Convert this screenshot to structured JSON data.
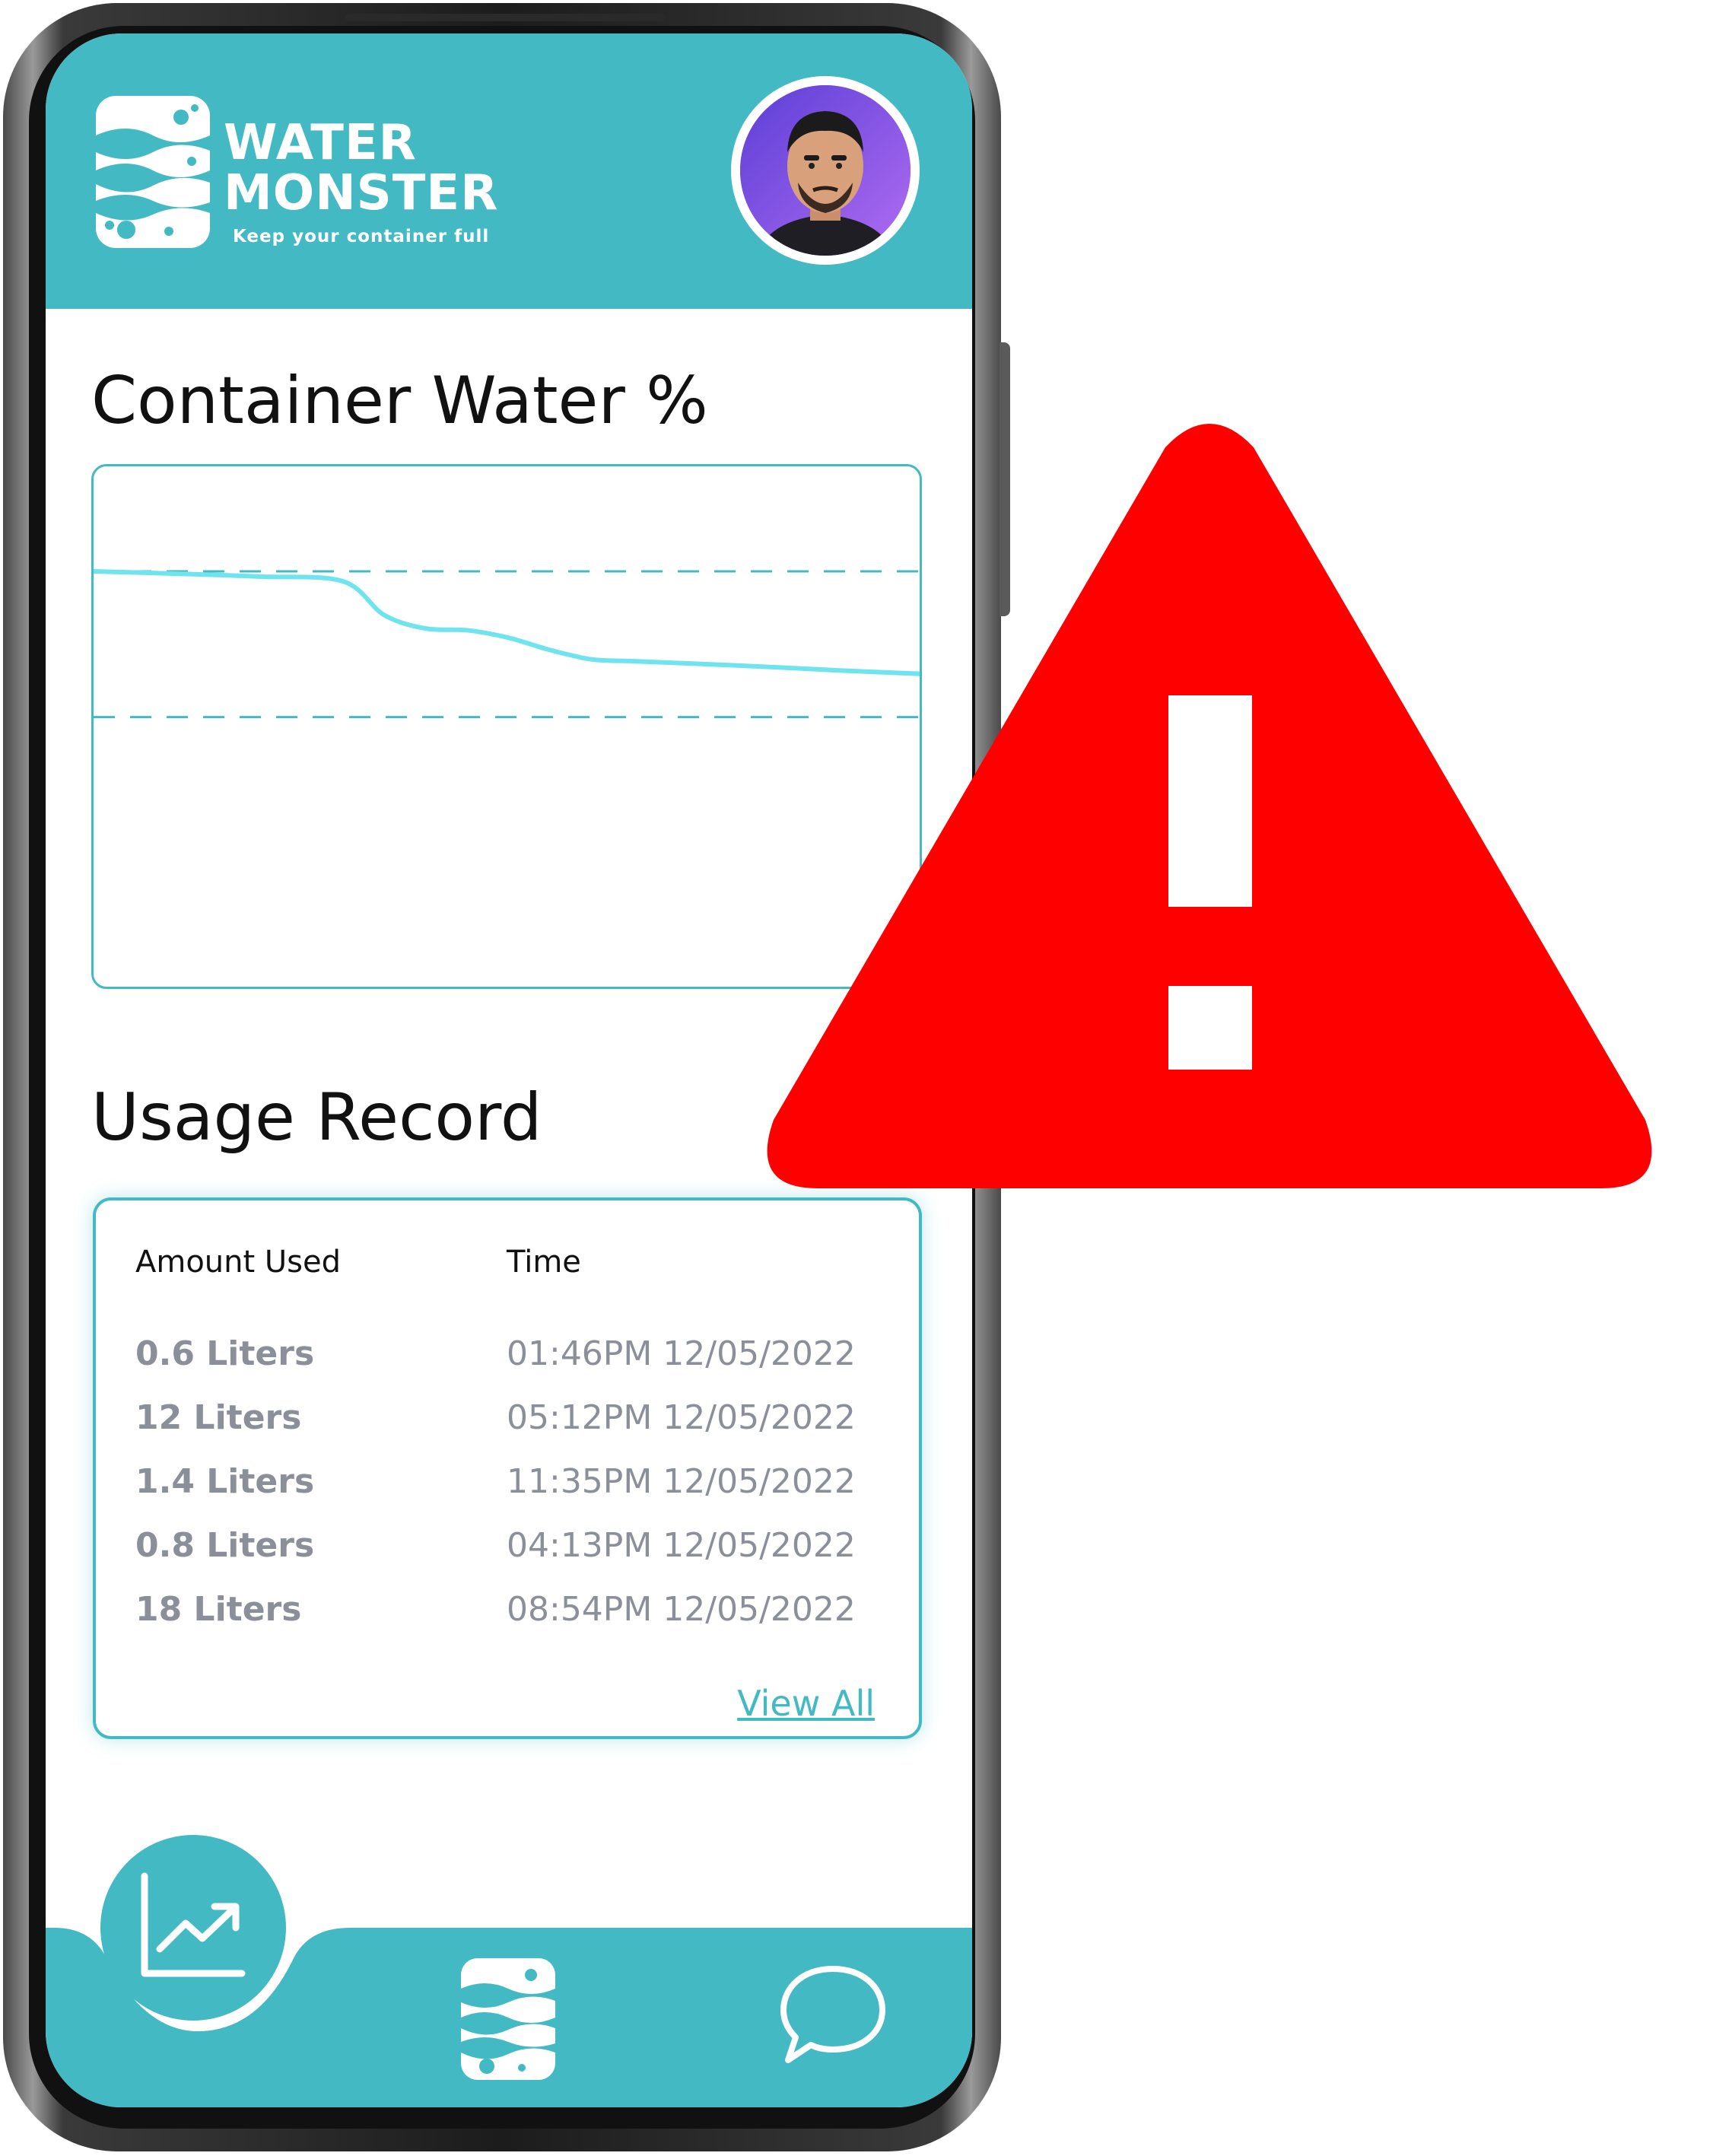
{
  "app": {
    "brand_line1": "WATER",
    "brand_line2": "MONSTER",
    "tagline": "Keep your container full",
    "accent_color": "#43b9c3",
    "warning_color": "#ff0000"
  },
  "chart_section": {
    "title": "Container Water %"
  },
  "chart_data": {
    "type": "line",
    "title": "Container Water %",
    "xlabel": "",
    "ylabel": "",
    "x": [
      0,
      10,
      20,
      30,
      35,
      40,
      45,
      50,
      55,
      60,
      65,
      70,
      80,
      90,
      100
    ],
    "values": [
      72,
      71.6,
      71.1,
      70.3,
      64.5,
      62.2,
      61.9,
      60.6,
      58.5,
      56.9,
      56.6,
      56.3,
      55.7,
      55,
      54.4
    ],
    "ylim": [
      0,
      90
    ],
    "reference_lines": [
      72,
      47
    ],
    "grid": false,
    "legend": "none",
    "line_color": "#6fe3ee"
  },
  "usage": {
    "title": "Usage Record",
    "columns": [
      "Amount Used",
      "Time"
    ],
    "rows": [
      {
        "amount": "0.6 Liters",
        "time": "01:46PM 12/05/2022"
      },
      {
        "amount": "12 Liters",
        "time": "05:12PM 12/05/2022"
      },
      {
        "amount": "1.4 Liters",
        "time": "11:35PM 12/05/2022"
      },
      {
        "amount": "0.8 Liters",
        "time": "04:13PM 12/05/2022"
      },
      {
        "amount": "18 Liters",
        "time": "08:54PM 12/05/2022"
      }
    ],
    "view_all": "View All"
  },
  "nav": {
    "icons": [
      "trending-up-icon",
      "water-monster-logo-icon",
      "chat-bubble-icon"
    ]
  }
}
